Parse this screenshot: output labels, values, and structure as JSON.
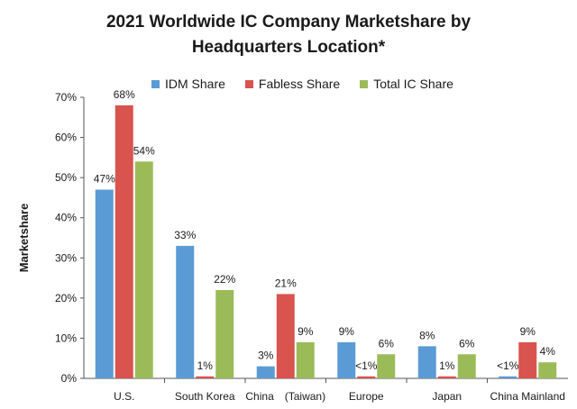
{
  "chart_data": {
    "type": "bar",
    "title_line1": "2021 Worldwide IC Company Marketshare by",
    "title_line2": "Headquarters Location*",
    "xlabel": "",
    "ylabel": "Marketshare",
    "ylim": [
      0,
      70
    ],
    "yticks": [
      "0%",
      "10%",
      "20%",
      "30%",
      "40%",
      "50%",
      "60%",
      "70%"
    ],
    "categories": [
      "U.S.",
      "South Korea",
      "China　(Taiwan)",
      "Europe",
      "Japan",
      "China Mainland"
    ],
    "series": [
      {
        "name": "IDM Share",
        "color": "#5b9bd5",
        "values": [
          47,
          33,
          3,
          9,
          8,
          0.5
        ],
        "labels": [
          "47%",
          "33%",
          "3%",
          "9%",
          "8%",
          "<1%"
        ]
      },
      {
        "name": "Fabless Share",
        "color": "#d9534f",
        "values": [
          68,
          0.5,
          21,
          0.5,
          0.5,
          9
        ],
        "labels": [
          "68%",
          "1%",
          "21%",
          "<1%",
          "1%",
          "9%"
        ]
      },
      {
        "name": "Total IC Share",
        "color": "#9bbb59",
        "values": [
          54,
          22,
          9,
          6,
          6,
          4
        ],
        "labels": [
          "54%",
          "22%",
          "9%",
          "6%",
          "6%",
          "4%"
        ]
      }
    ],
    "grid": false,
    "legend_position": "top"
  }
}
